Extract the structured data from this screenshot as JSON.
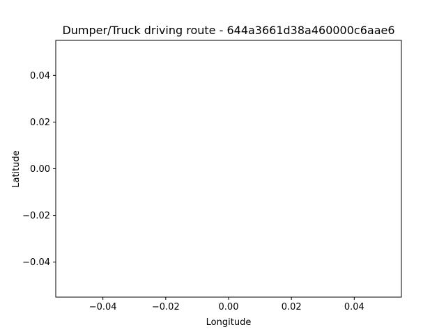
{
  "chart_data": {
    "type": "line",
    "title": "Dumper/Truck driving route - 644a3661d38a460000c6aae6",
    "xlabel": "Longitude",
    "ylabel": "Latitude",
    "xlim": [
      -0.055,
      0.055
    ],
    "ylim": [
      -0.055,
      0.055
    ],
    "xticks": [
      -0.04,
      -0.02,
      0.0,
      0.02,
      0.04
    ],
    "xtick_labels": [
      "−0.04",
      "−0.02",
      "0.00",
      "0.02",
      "0.04"
    ],
    "yticks": [
      0.04,
      0.02,
      0.0,
      -0.02,
      -0.04
    ],
    "ytick_labels": [
      "0.04",
      "0.02",
      "0.00",
      "−0.02",
      "−0.04"
    ],
    "grid": false,
    "series": [
      {
        "x": [],
        "y": []
      }
    ]
  }
}
